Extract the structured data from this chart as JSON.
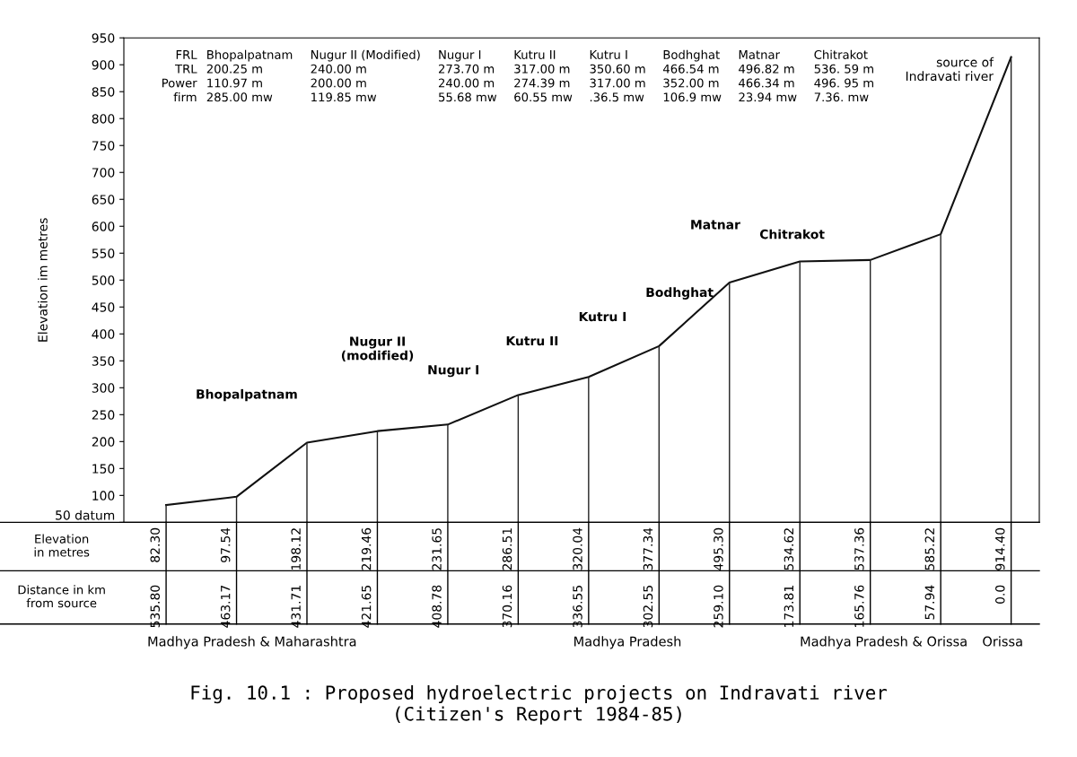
{
  "chart_data": {
    "type": "line",
    "title": "Fig. 10.1 : Proposed hydroelectric projects on Indravati river\n(Citizen's Report 1984-85)",
    "ylabel": "Elevation im metres",
    "categories": [
      "535.80",
      "463.17",
      "431.71",
      "421.65",
      "408.78",
      "370.16",
      "336.55",
      "302.55",
      "259.10",
      "173.81",
      "165.76",
      "57.94",
      "0.0"
    ],
    "values": [
      82.3,
      97.54,
      198.12,
      219.46,
      231.65,
      286.51,
      320.04,
      377.34,
      495.3,
      534.62,
      537.36,
      585.22,
      914.4
    ],
    "value_labels": [
      "82.30",
      "97.54",
      "198.12",
      "219.46",
      "231.65",
      "286.51",
      "320.04",
      "377.34",
      "495.30",
      "534.62",
      "537.36",
      "585.22",
      "914.40"
    ],
    "color": "#111111",
    "marker": "none",
    "line_style": "solid",
    "grid": false,
    "ylim": [
      50,
      950
    ],
    "yticks": [
      {
        "value": 50,
        "label": "50 datum"
      },
      100,
      150,
      200,
      250,
      300,
      350,
      400,
      450,
      500,
      550,
      600,
      650,
      700,
      750,
      800,
      850,
      900,
      950
    ],
    "annotations": [
      "FRL\nTRL\nPower\nfirm",
      "Bhopalpatnam\n200.25 m\n110.97 m\n285.00 mw",
      "Nugur II (Modified)\n240.00 m\n200.00 m\n119.85 mw",
      "Nugur I\n273.70 m\n240.00 m\n55.68 mw",
      "Kutru II\n317.00 m\n274.39 m\n60.55 mw",
      "Kutru I\n350.60 m\n317.00 m\n.36.5 mw",
      "Bodhghat\n466.54 m\n352.00 m\n106.9 mw",
      "Matnar\n496.82 m\n466.34 m\n23.94 mw",
      "Chitrakot\n536. 59 m\n496. 95 m\n7.36. mw",
      "source of\nIndravati river",
      "Bhopalpatnam",
      "Nugur II\n(modified)",
      "Nugur I",
      "Kutru II",
      "Kutru I",
      "Bodhghat",
      "Matnar",
      "Chitrakot",
      "Elevation\nin metres",
      "Distance in km\nfrom source",
      "Madhya Pradesh & Maharashtra",
      "Madhya Pradesh",
      "Madhya Pradesh & Orissa",
      "Orissa"
    ]
  }
}
